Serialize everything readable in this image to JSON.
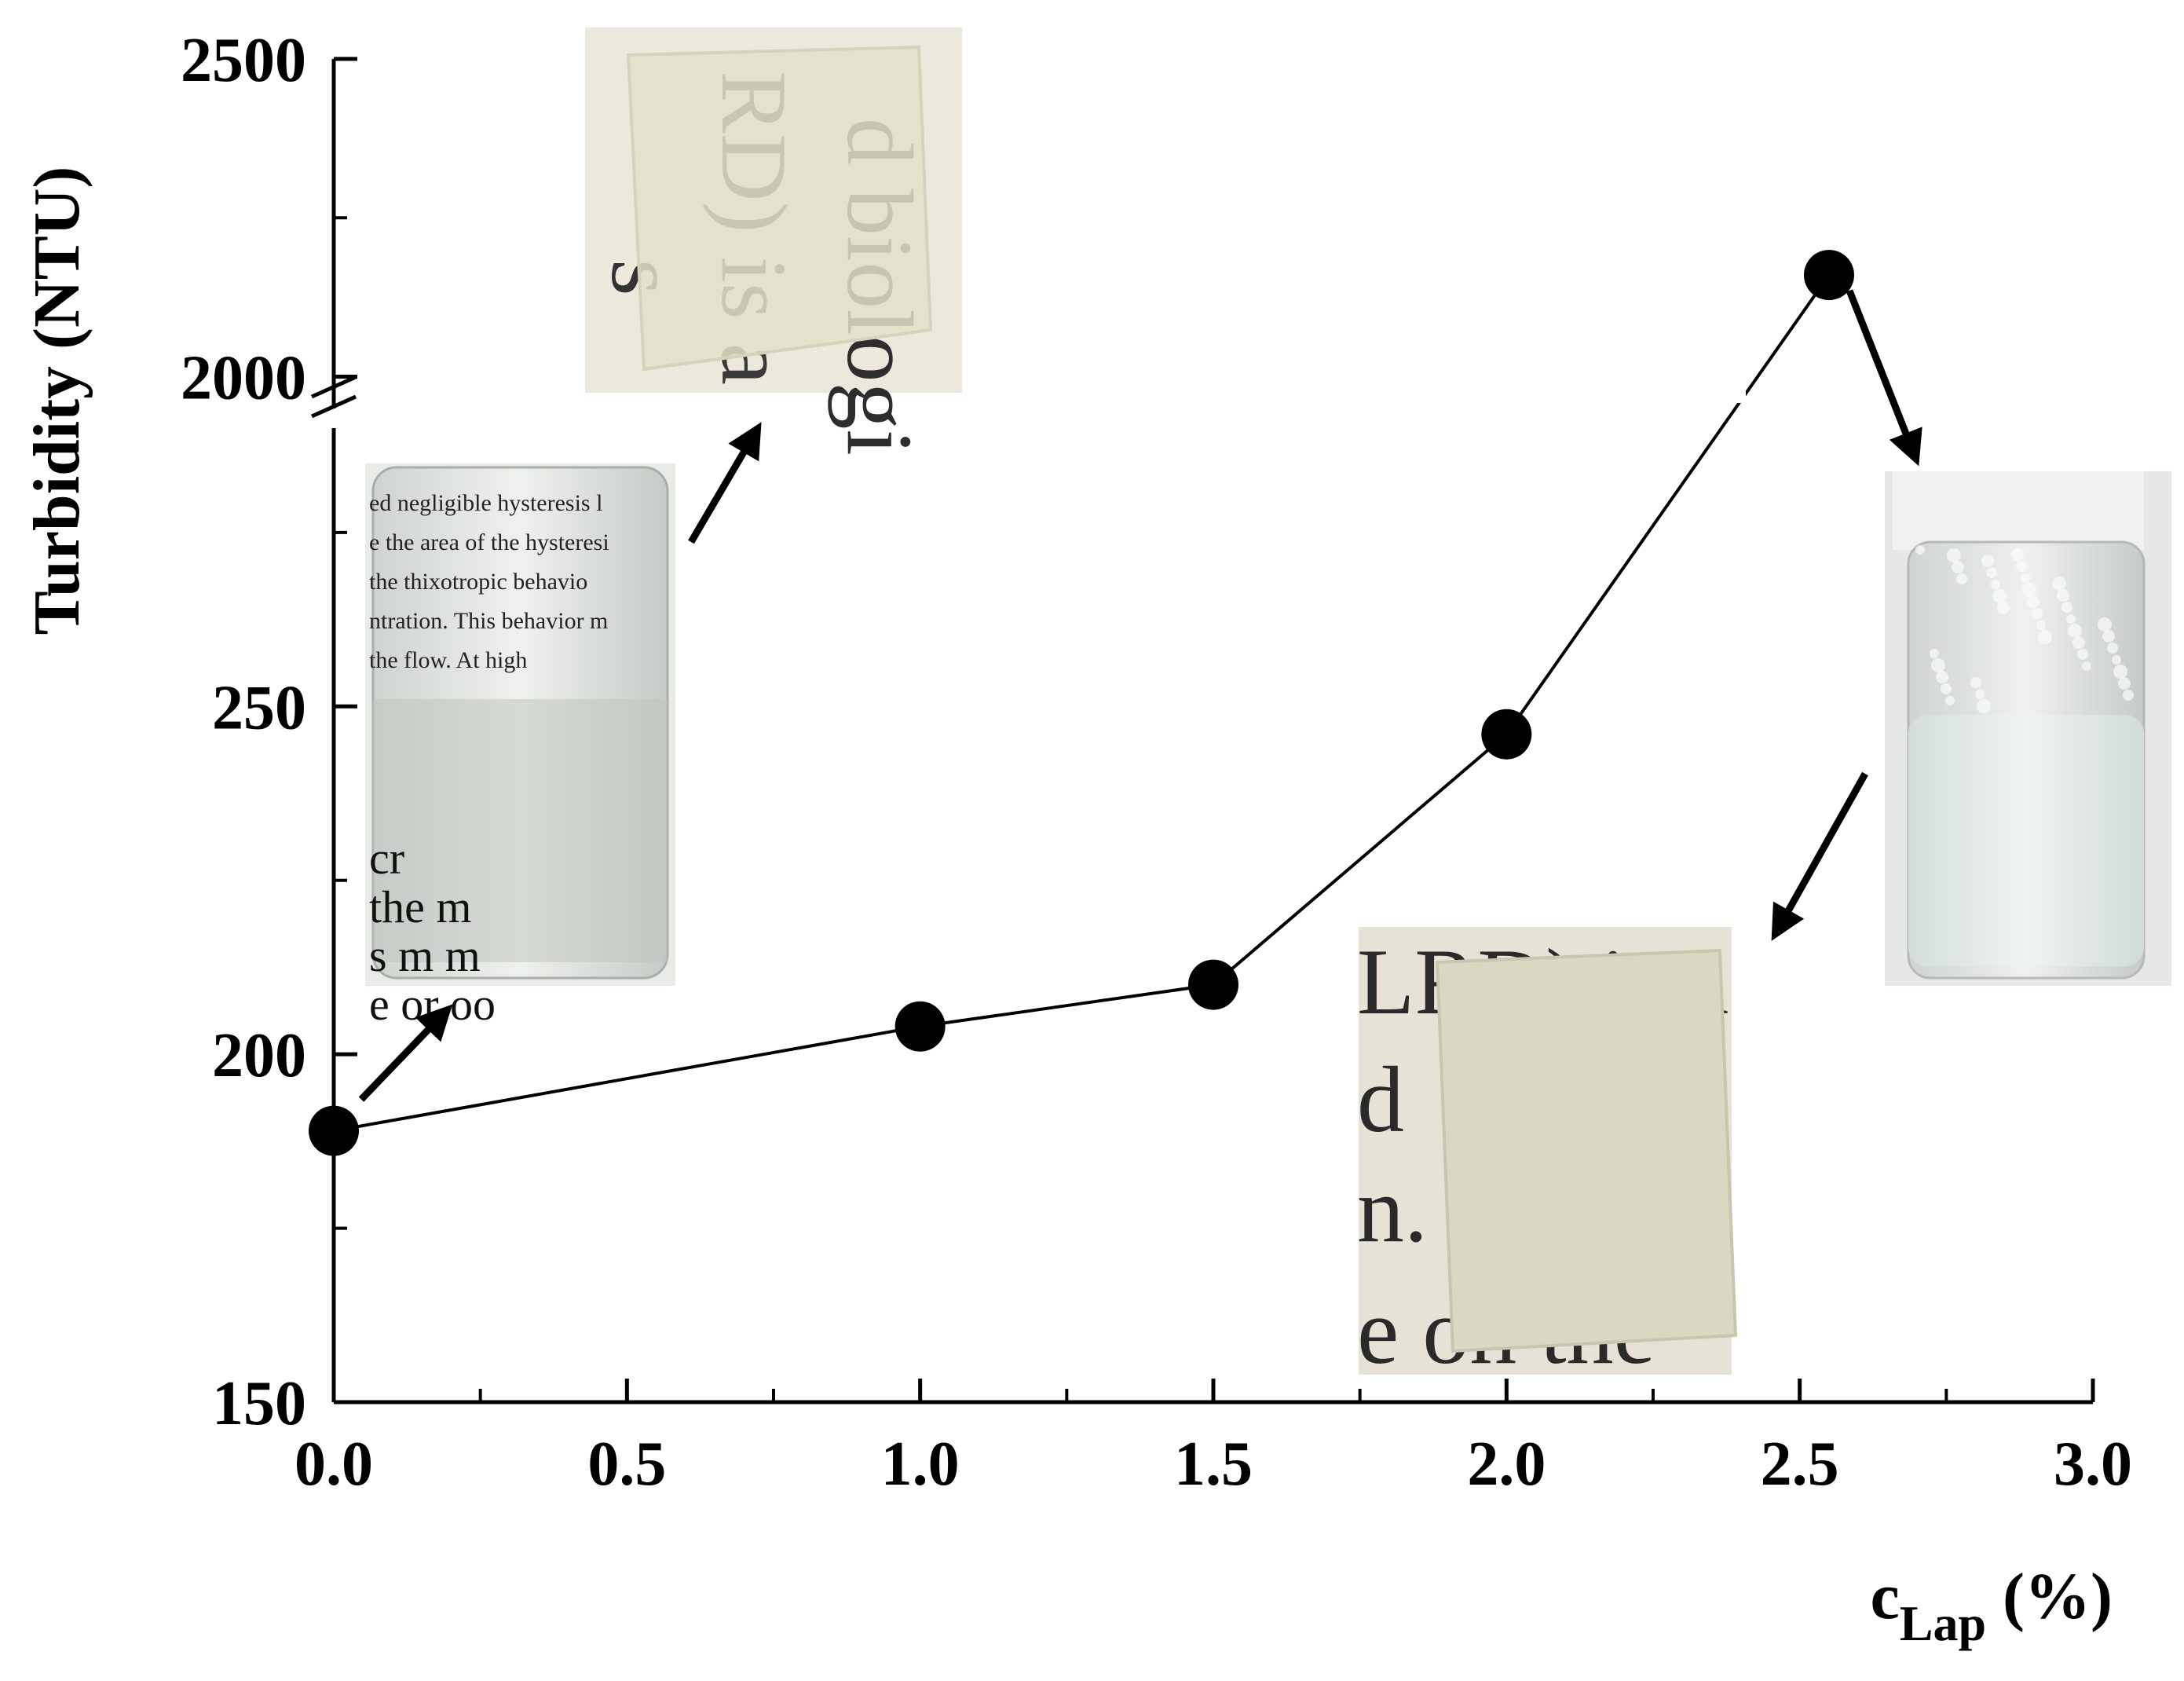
{
  "chart_data": {
    "type": "line",
    "title": "",
    "xlabel": {
      "main": "c",
      "sub": "Lap",
      "suffix": " (%)"
    },
    "ylabel": "Turbidity (NTU)",
    "xlim": [
      0.0,
      3.0
    ],
    "ylim_lower": [
      150,
      290
    ],
    "ylim_upper": [
      1950,
      2500
    ],
    "axis_break": true,
    "grid": false,
    "legend": "none",
    "x_ticks": [
      "0.0",
      "0.5",
      "1.0",
      "1.5",
      "2.0",
      "2.5",
      "3.0"
    ],
    "y_ticks_lower": [
      "150",
      "200",
      "250"
    ],
    "y_ticks_upper": [
      "2000",
      "2500"
    ],
    "series": [
      {
        "x": [
          0.0,
          1.0,
          1.5,
          2.0,
          2.55
        ],
        "y": [
          189,
          204,
          210,
          246,
          2160
        ]
      }
    ],
    "insets": [
      {
        "name": "gel-vial-clear",
        "near_point": 0.0,
        "caption_lines": [
          "ed negligible hysteresis l",
          "e the area of the hysteresi",
          "the thixotropic behavio",
          "ntration. This behavior m",
          "the flow. At high",
          "",
          "cr",
          "the m",
          "s m m",
          "e or oo"
        ]
      },
      {
        "name": "film-clear",
        "near_point": 0.0,
        "caption_lines": [
          "d biologi",
          "RD) is a",
          "s"
        ]
      },
      {
        "name": "gel-vial-turbid",
        "near_point": 2.55,
        "caption_lines": []
      },
      {
        "name": "film-turbid",
        "near_point": 2.55,
        "caption_lines": [
          "LRD) is a",
          "d",
          "n.",
          "e on the"
        ]
      }
    ],
    "colors": {
      "line": "#000000",
      "marker": "#000000",
      "axis": "#000000"
    }
  }
}
